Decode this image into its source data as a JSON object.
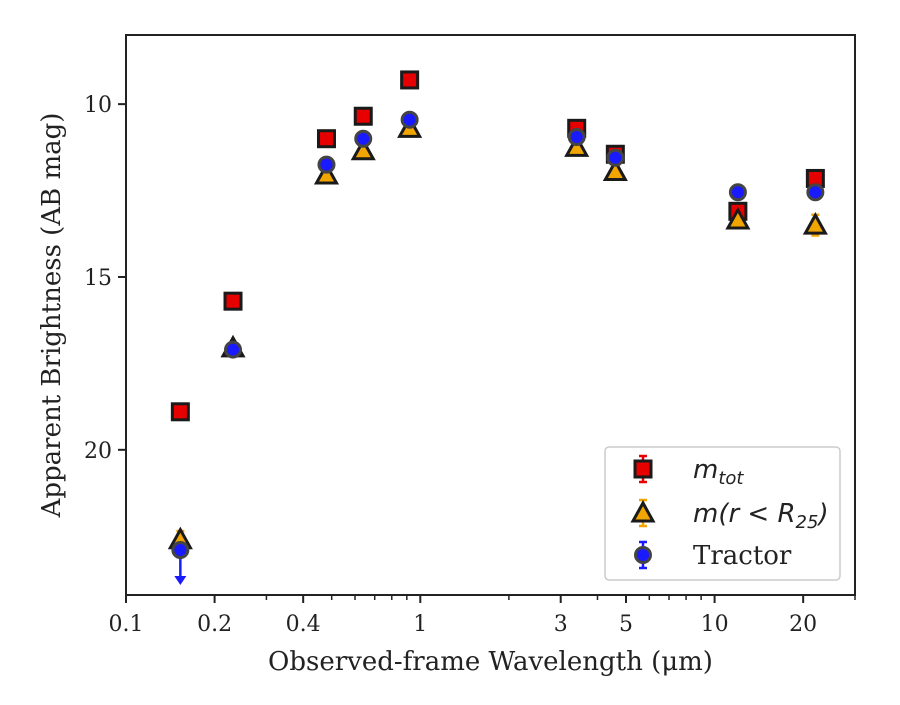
{
  "chart_data": {
    "type": "scatter",
    "title": "",
    "xlabel": "Observed-frame Wavelength (μm)",
    "ylabel": "Apparent Brightness (AB mag)",
    "x_scale": "log",
    "xlim": [
      0.1,
      30
    ],
    "ylim": [
      8,
      24.2
    ],
    "y_inverted": true,
    "grid": false,
    "legend_position": "bottom-right",
    "x_ticks": [
      {
        "value": 0.1,
        "label": "0.1"
      },
      {
        "value": 0.2,
        "label": "0.2"
      },
      {
        "value": 0.4,
        "label": "0.4"
      },
      {
        "value": 1,
        "label": "1"
      },
      {
        "value": 3,
        "label": "3"
      },
      {
        "value": 5,
        "label": "5"
      },
      {
        "value": 10,
        "label": "10"
      },
      {
        "value": 20,
        "label": "20"
      }
    ],
    "y_ticks": [
      {
        "value": 10,
        "label": "10"
      },
      {
        "value": 15,
        "label": "15"
      },
      {
        "value": 20,
        "label": "20"
      }
    ],
    "series": [
      {
        "name": "m_tot",
        "legend_main": "m",
        "legend_sub": "tot",
        "marker": "square",
        "color": "#e60000",
        "x": [
          0.153,
          0.231,
          0.48,
          0.64,
          0.92,
          3.4,
          4.6,
          12.0,
          22.0
        ],
        "y": [
          18.9,
          15.7,
          11.0,
          10.35,
          9.3,
          10.7,
          11.45,
          13.1,
          12.15
        ],
        "err": [
          0.1,
          0.05,
          0.05,
          0.05,
          0.05,
          0.1,
          0.1,
          0.15,
          0.15
        ]
      },
      {
        "name": "m(r < R25)",
        "legend_main": "m(r < R",
        "legend_sub": "25",
        "legend_tail": ")",
        "marker": "triangle",
        "color": "#f0a500",
        "x": [
          0.153,
          0.231,
          0.48,
          0.64,
          0.92,
          3.4,
          4.6,
          12.0,
          22.0
        ],
        "y": [
          22.6,
          17.05,
          12.05,
          11.35,
          10.7,
          11.25,
          11.95,
          13.35,
          13.5
        ],
        "err": [
          0.25,
          0.05,
          0.05,
          0.05,
          0.05,
          0.05,
          0.05,
          0.15,
          0.3
        ]
      },
      {
        "name": "Tractor",
        "legend_main": "Tractor",
        "marker": "circle",
        "color": "#1a1aff",
        "x": [
          0.153,
          0.231,
          0.48,
          0.64,
          0.92,
          3.4,
          4.6,
          12.0,
          22.0
        ],
        "y": [
          22.9,
          17.1,
          11.75,
          11.0,
          10.45,
          10.95,
          11.55,
          12.55,
          12.55
        ],
        "err": [
          0.2,
          0.05,
          0.05,
          0.05,
          0.05,
          0.05,
          0.05,
          0.05,
          0.05
        ],
        "upper_limit_index": 0
      }
    ]
  }
}
